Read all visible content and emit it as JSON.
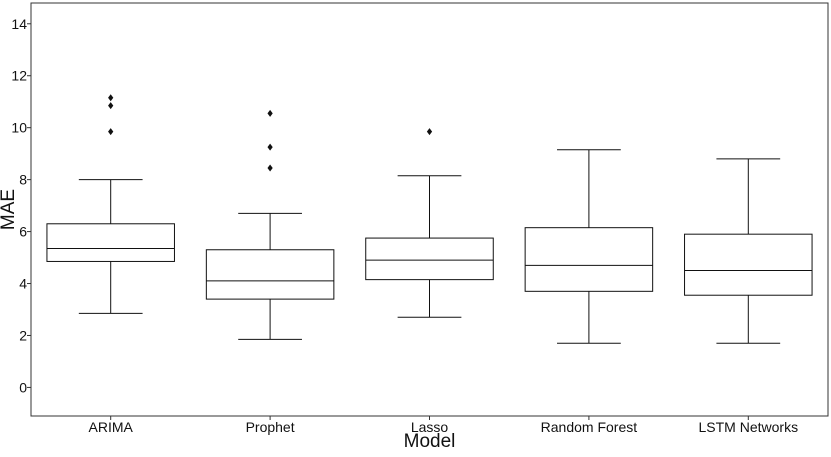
{
  "chart_data": {
    "type": "box",
    "title": "",
    "xlabel": "Model",
    "ylabel": "MAE",
    "ylim": [
      -1.1,
      14.8
    ],
    "yticks": [
      0,
      2,
      4,
      6,
      8,
      10,
      12,
      14
    ],
    "grid": false,
    "categories": [
      "ARIMA",
      "Prophet",
      "Lasso",
      "Random Forest",
      "LSTM Networks"
    ],
    "boxes": [
      {
        "whisker_low": 2.85,
        "q1": 4.85,
        "median": 5.35,
        "q3": 6.3,
        "whisker_high": 8.0,
        "outliers": [
          9.85,
          10.85,
          11.15
        ]
      },
      {
        "whisker_low": 1.85,
        "q1": 3.4,
        "median": 4.1,
        "q3": 5.3,
        "whisker_high": 6.7,
        "outliers": [
          8.45,
          9.25,
          10.55
        ]
      },
      {
        "whisker_low": 2.7,
        "q1": 4.15,
        "median": 4.9,
        "q3": 5.75,
        "whisker_high": 8.15,
        "outliers": [
          9.85
        ]
      },
      {
        "whisker_low": 1.7,
        "q1": 3.7,
        "median": 4.7,
        "q3": 6.15,
        "whisker_high": 9.15,
        "outliers": []
      },
      {
        "whisker_low": 1.7,
        "q1": 3.55,
        "median": 4.5,
        "q3": 5.9,
        "whisker_high": 8.8,
        "outliers": []
      }
    ]
  }
}
